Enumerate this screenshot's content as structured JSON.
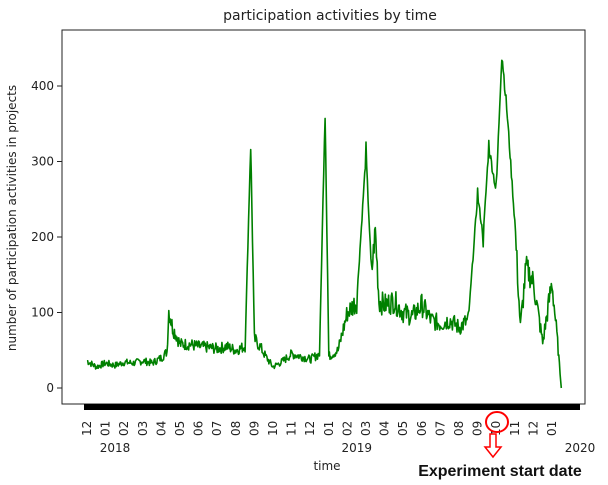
{
  "chart_data": {
    "type": "line",
    "title": "participation activities by time",
    "xlabel": "time",
    "ylabel": "number of participation activities in projects",
    "ylim": [
      -20,
      480
    ],
    "yticks": [
      0,
      100,
      200,
      300,
      400
    ],
    "grid": false,
    "month_ticks": [
      "12",
      "01",
      "02",
      "03",
      "04",
      "05",
      "06",
      "07",
      "08",
      "09",
      "10",
      "11",
      "12",
      "01",
      "02",
      "03",
      "04",
      "05",
      "06",
      "07",
      "08",
      "09",
      "10",
      "11",
      "12",
      "01"
    ],
    "year_labels": [
      {
        "label": "2018",
        "month_index": 0
      },
      {
        "label": "2019",
        "month_index": 13
      },
      {
        "label": "2020",
        "month_index": 25
      }
    ],
    "series": [
      {
        "name": "participation activities",
        "color": "#008000",
        "x": [
          0,
          0.5,
          1,
          1.5,
          2,
          2.5,
          3,
          3.5,
          4,
          4.3,
          4.4,
          4.6,
          4.8,
          5,
          5.5,
          6,
          6.5,
          7,
          7.5,
          8,
          8.5,
          8.8,
          9,
          9.3,
          9.6,
          10,
          10.5,
          11,
          11.5,
          12,
          12.5,
          12.8,
          13,
          13.2,
          13.5,
          14,
          14.5,
          15,
          15.3,
          15.5,
          15.7,
          16,
          16.5,
          17,
          17.5,
          18,
          18.5,
          19,
          19.5,
          20,
          20.5,
          21,
          21.3,
          21.6,
          22,
          22.3,
          22.6,
          23,
          23.3,
          23.6,
          24,
          24.5,
          25,
          25.3,
          25.5
        ],
        "values": [
          36,
          28,
          33,
          30,
          34,
          33,
          36,
          33,
          40,
          48,
          103,
          80,
          70,
          58,
          58,
          55,
          54,
          52,
          55,
          50,
          55,
          325,
          65,
          55,
          42,
          28,
          35,
          45,
          42,
          38,
          45,
          370,
          42,
          45,
          50,
          100,
          115,
          310,
          150,
          210,
          115,
          110,
          115,
          100,
          95,
          110,
          90,
          85,
          90,
          80,
          90,
          255,
          200,
          320,
          260,
          445,
          360,
          220,
          80,
          160,
          140,
          60,
          140,
          60,
          0
        ]
      }
    ],
    "annotations": [
      {
        "text": "Experiment start date",
        "month_index": 21,
        "color": "#ff0000"
      }
    ]
  }
}
